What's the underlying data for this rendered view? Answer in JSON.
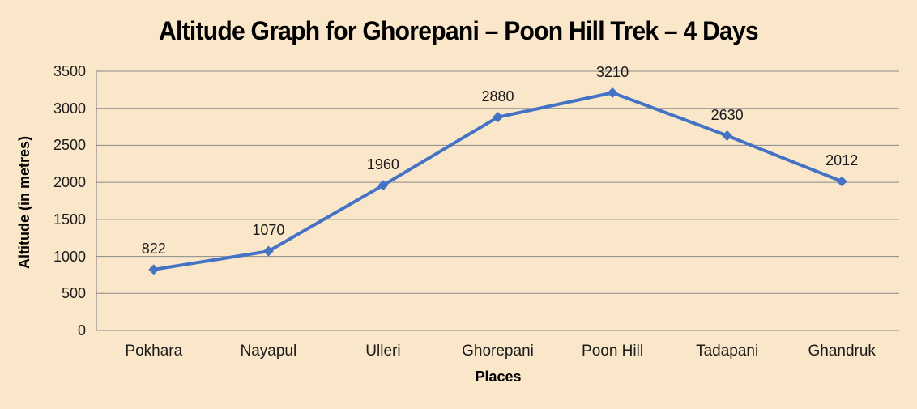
{
  "colors": {
    "background": "#fae6c8",
    "line": "#4472c4",
    "marker": "#4472c4",
    "grid": "#8a8a8a",
    "text": "#1a1a1a",
    "title_text": "#000000"
  },
  "chart_data": {
    "type": "line",
    "title": "Altitude Graph for Ghorepani – Poon Hill Trek – 4 Days",
    "xlabel": "Places",
    "ylabel": "Altitude (in metres)",
    "categories": [
      "Pokhara",
      "Nayapul",
      "Ulleri",
      "Ghorepani",
      "Poon Hill",
      "Tadapani",
      "Ghandruk"
    ],
    "values": [
      822,
      1070,
      1960,
      2880,
      3210,
      2630,
      2012
    ],
    "ylim": [
      0,
      3500
    ],
    "ytick_step": 500,
    "grid": true,
    "legend": "none",
    "marker": "diamond",
    "data_labels": true
  }
}
